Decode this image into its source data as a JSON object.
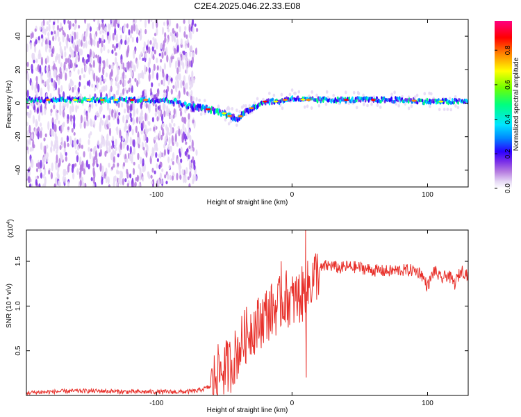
{
  "page_title": "C2E4.2025.046.22.33.E08",
  "chart_data": [
    {
      "type": "heatmap",
      "title": "C2E4.2025.046.22.33.E08",
      "xlabel": "Height of straight line (km)",
      "ylabel": "Frequency (Hz)",
      "xlim": [
        -196,
        130
      ],
      "ylim": [
        -50,
        50
      ],
      "x_ticks": [
        -100,
        0,
        100
      ],
      "x_tick_labels": [
        "-100",
        "0",
        "100"
      ],
      "y_ticks": [
        -40,
        -20,
        0,
        20,
        40
      ],
      "y_tick_labels": [
        "-40",
        "-20",
        "0",
        "20",
        "40"
      ],
      "colorbar": {
        "label": "Normalized spectral amplitude",
        "range": [
          0,
          0.97
        ],
        "ticks": [
          0.0,
          0.2,
          0.4,
          0.6,
          0.8
        ],
        "tick_labels": [
          "0.0",
          "0.2",
          "0.4",
          "0.6",
          "0.8"
        ],
        "colormap": [
          "#ffffff",
          "#e6d9f5",
          "#b57be0",
          "#7a2ee8",
          "#2b00ff",
          "#0088ff",
          "#00e5ff",
          "#00ff7f",
          "#70ff00",
          "#ffff00",
          "#ff8800",
          "#ff0000",
          "#ff0080"
        ]
      },
      "ridge_frequency": {
        "x": [
          -196,
          -160,
          -120,
          -95,
          -85,
          -75,
          -65,
          -55,
          -50,
          -45,
          -40,
          -35,
          -30,
          -25,
          -20,
          -15,
          -10,
          -5,
          0,
          10,
          20,
          40,
          60,
          80,
          100,
          130
        ],
        "y": [
          2,
          2,
          2,
          2,
          1,
          -2,
          -3,
          -5,
          -6,
          -8,
          -9,
          -6,
          -3,
          -1,
          1,
          1,
          1,
          2,
          3,
          2,
          2,
          2,
          2,
          2,
          1,
          1
        ]
      },
      "grid": false
    },
    {
      "type": "line",
      "xlabel": "Height of straight line (km)",
      "ylabel": "SNR (10 * v/v)",
      "y_scale_label": "(x10",
      "y_scale_exponent": "4",
      "xlim": [
        -196,
        130
      ],
      "ylim": [
        0,
        18500
      ],
      "x_ticks": [
        -100,
        0,
        100
      ],
      "x_tick_labels": [
        "-100",
        "0",
        "100"
      ],
      "y_ticks": [
        5000,
        10000,
        15000
      ],
      "y_tick_labels": [
        "0.5",
        "1.0",
        "1.5"
      ],
      "series": [
        {
          "color": "#e8312b",
          "x": [
            -196,
            -180,
            -160,
            -140,
            -120,
            -100,
            -80,
            -70,
            -60,
            -55,
            -50,
            -45,
            -40,
            -35,
            -30,
            -25,
            -20,
            -15,
            -10,
            -5,
            0,
            5,
            10,
            15,
            20,
            25,
            30,
            35,
            40,
            50,
            60,
            70,
            80,
            90,
            95,
            100,
            105,
            110,
            115,
            120,
            125,
            130
          ],
          "y": [
            300,
            400,
            500,
            500,
            400,
            400,
            400,
            500,
            1000,
            2500,
            3000,
            3500,
            5000,
            6500,
            7500,
            8000,
            9000,
            9500,
            10000,
            11000,
            10500,
            11000,
            11500,
            13000,
            14000,
            14500,
            14500,
            14200,
            14400,
            14300,
            14000,
            13900,
            14000,
            14000,
            13700,
            12200,
            14000,
            13000,
            13500,
            12500,
            14000,
            13500
          ]
        }
      ],
      "spikes": [
        {
          "x": 10,
          "y": 18500
        },
        {
          "x": 10.5,
          "y": 2000
        },
        {
          "x": -8,
          "y": 15000
        }
      ],
      "grid": false
    }
  ]
}
